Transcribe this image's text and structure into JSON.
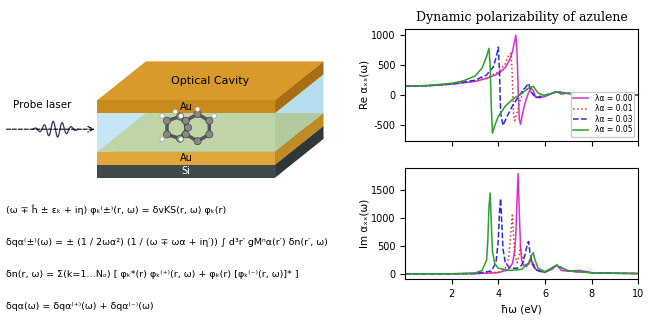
{
  "diagram": {
    "cavity_label": "Optical Cavity",
    "top_plate": "Au",
    "bottom_plate": "Au",
    "substrate": "Si",
    "probe": "Probe laser"
  },
  "equations": [
    "(ω ∓ ĥ ± εₖ + iη) φₖ⁽±⁾(r, ω) = δvKS(r, ω) φₖ(r)",
    "δqα⁽±⁾(ω) = ± (1 / 2ωα²) (1 / (ω ∓ ωα + iη′)) ∫ d³r′ gMⁿα(r′) δn(r′, ω)",
    "δn(r, ω) = Σ(k=1…Nₒ) [ φₖ*(r) φₖ⁽⁺⁾(r, ω) + φₖ(r) [φₖ⁽⁻⁾(r, ω)]* ]",
    "δqα(ω) = δqα⁽⁺⁾(ω) + δqα⁽⁻⁾(ω)"
  ],
  "chart_data": [
    {
      "type": "line",
      "title": "Dynamic polarizability of azulene",
      "y_label": "Re αₓₓ(ω)",
      "xlim": [
        0,
        10
      ],
      "xticks": [
        2,
        4,
        6,
        8,
        10
      ],
      "ylim": [
        -750,
        1100
      ],
      "yticks": [
        -500,
        0,
        500,
        1000
      ],
      "tick_labels": "y",
      "legend": "lower right",
      "grid": false,
      "series": [
        {
          "name": "λα = 0.00",
          "color": "#d62fd6",
          "line_style": "solid",
          "x": [
            0,
            1,
            2,
            3,
            3.5,
            4,
            4.3,
            4.5,
            4.6,
            4.7,
            4.75,
            4.8,
            4.85,
            4.9,
            4.95,
            5.0,
            5.1,
            5.2,
            5.3,
            5.4,
            5.5,
            5.6,
            5.8,
            6.0,
            6.3,
            6.5,
            6.7,
            7,
            7.5,
            8,
            9,
            10
          ],
          "values": [
            150,
            160,
            185,
            230,
            280,
            360,
            460,
            600,
            720,
            900,
            1000,
            750,
            100,
            -400,
            -480,
            -380,
            -200,
            -60,
            50,
            120,
            80,
            -30,
            -40,
            -20,
            30,
            60,
            20,
            40,
            20,
            10,
            5,
            5
          ]
        },
        {
          "name": "λα = 0.01",
          "color": "#e8302a",
          "line_style": "dotted",
          "x": [
            0,
            1,
            2,
            3,
            3.5,
            4,
            4.3,
            4.45,
            4.55,
            4.6,
            4.65,
            4.7,
            4.8,
            4.9,
            5.0,
            5.1,
            5.2,
            5.4,
            5.6,
            6,
            6.5,
            7,
            8,
            9,
            10
          ],
          "values": [
            150,
            160,
            185,
            235,
            290,
            390,
            520,
            680,
            700,
            300,
            -300,
            -420,
            -300,
            -120,
            -20,
            120,
            100,
            60,
            -30,
            0,
            60,
            30,
            10,
            5,
            5
          ]
        },
        {
          "name": "λα = 0.03",
          "color": "#2a2ae0",
          "line_style": "dashed",
          "x": [
            0,
            1,
            2,
            3,
            3.5,
            3.8,
            3.95,
            4.0,
            4.05,
            4.1,
            4.2,
            4.4,
            4.6,
            4.8,
            5.0,
            5.2,
            5.3,
            5.4,
            5.6,
            5.8,
            6,
            6.5,
            7,
            8,
            9,
            10
          ],
          "values": [
            150,
            160,
            190,
            250,
            340,
            480,
            700,
            800,
            400,
            -300,
            -500,
            -330,
            -180,
            -60,
            50,
            150,
            200,
            60,
            -40,
            -20,
            0,
            60,
            30,
            10,
            5,
            5
          ]
        },
        {
          "name": "λα = 0.05",
          "color": "#2ca02c",
          "line_style": "solid",
          "x": [
            0,
            1,
            2,
            2.5,
            3,
            3.3,
            3.5,
            3.6,
            3.65,
            3.7,
            3.75,
            3.85,
            4.0,
            4.3,
            4.6,
            5.0,
            5.3,
            5.5,
            5.7,
            6.0,
            6.5,
            7,
            8,
            9,
            10
          ],
          "values": [
            150,
            165,
            200,
            240,
            320,
            450,
            650,
            780,
            500,
            -200,
            -630,
            -500,
            -350,
            -180,
            -70,
            30,
            120,
            150,
            40,
            -10,
            60,
            30,
            10,
            5,
            5
          ]
        }
      ]
    },
    {
      "type": "line",
      "x_label": "ħω (eV)",
      "y_label": "Im αₓₓ(ω)",
      "xlim": [
        0,
        10
      ],
      "xticks": [
        2,
        4,
        6,
        8,
        10
      ],
      "ylim": [
        -100,
        1900
      ],
      "yticks": [
        0,
        500,
        1000,
        1500
      ],
      "grid": false,
      "series": [
        {
          "color": "#d62fd6",
          "line_style": "solid",
          "x": [
            0,
            2,
            3,
            4,
            4.4,
            4.6,
            4.7,
            4.75,
            4.8,
            4.85,
            4.9,
            4.95,
            5.0,
            5.1,
            5.2,
            5.3,
            5.4,
            5.5,
            5.6,
            5.8,
            6.0,
            6.3,
            6.5,
            6.7,
            7,
            7.5,
            8,
            9,
            10
          ],
          "values": [
            0,
            0,
            3,
            20,
            70,
            180,
            400,
            700,
            1300,
            1800,
            1100,
            500,
            250,
            150,
            130,
            180,
            250,
            180,
            80,
            40,
            30,
            80,
            160,
            60,
            50,
            60,
            20,
            10,
            5
          ]
        },
        {
          "color": "#e8302a",
          "line_style": "dotted",
          "x": [
            0,
            2,
            3,
            4,
            4.3,
            4.45,
            4.55,
            4.6,
            4.65,
            4.7,
            4.8,
            4.9,
            4.95,
            5.0,
            5.1,
            5.2,
            5.4,
            5.5,
            5.6,
            6,
            6.5,
            7,
            8,
            9,
            10
          ],
          "values": [
            0,
            0,
            3,
            30,
            100,
            300,
            800,
            1050,
            700,
            350,
            200,
            350,
            500,
            350,
            200,
            150,
            220,
            200,
            80,
            30,
            160,
            50,
            20,
            10,
            5
          ]
        },
        {
          "color": "#2a2ae0",
          "line_style": "dashed",
          "x": [
            0,
            2,
            3,
            3.7,
            3.9,
            4.0,
            4.05,
            4.1,
            4.15,
            4.2,
            4.3,
            4.5,
            4.8,
            5.0,
            5.15,
            5.25,
            5.3,
            5.35,
            5.45,
            5.6,
            6,
            6.5,
            7,
            8,
            9,
            10
          ],
          "values": [
            0,
            0,
            5,
            50,
            200,
            600,
            1100,
            1350,
            900,
            450,
            200,
            100,
            100,
            150,
            350,
            550,
            580,
            400,
            180,
            70,
            30,
            150,
            50,
            20,
            10,
            5
          ]
        },
        {
          "color": "#2ca02c",
          "line_style": "solid",
          "x": [
            0,
            2,
            3,
            3.3,
            3.5,
            3.55,
            3.6,
            3.65,
            3.7,
            3.75,
            3.85,
            4.0,
            4.5,
            5.0,
            5.3,
            5.45,
            5.5,
            5.55,
            5.7,
            6,
            6.5,
            7,
            8,
            9,
            10
          ],
          "values": [
            0,
            2,
            15,
            60,
            250,
            600,
            1200,
            1450,
            900,
            400,
            180,
            100,
            60,
            80,
            200,
            350,
            380,
            280,
            100,
            40,
            150,
            50,
            20,
            10,
            5
          ]
        }
      ]
    }
  ]
}
